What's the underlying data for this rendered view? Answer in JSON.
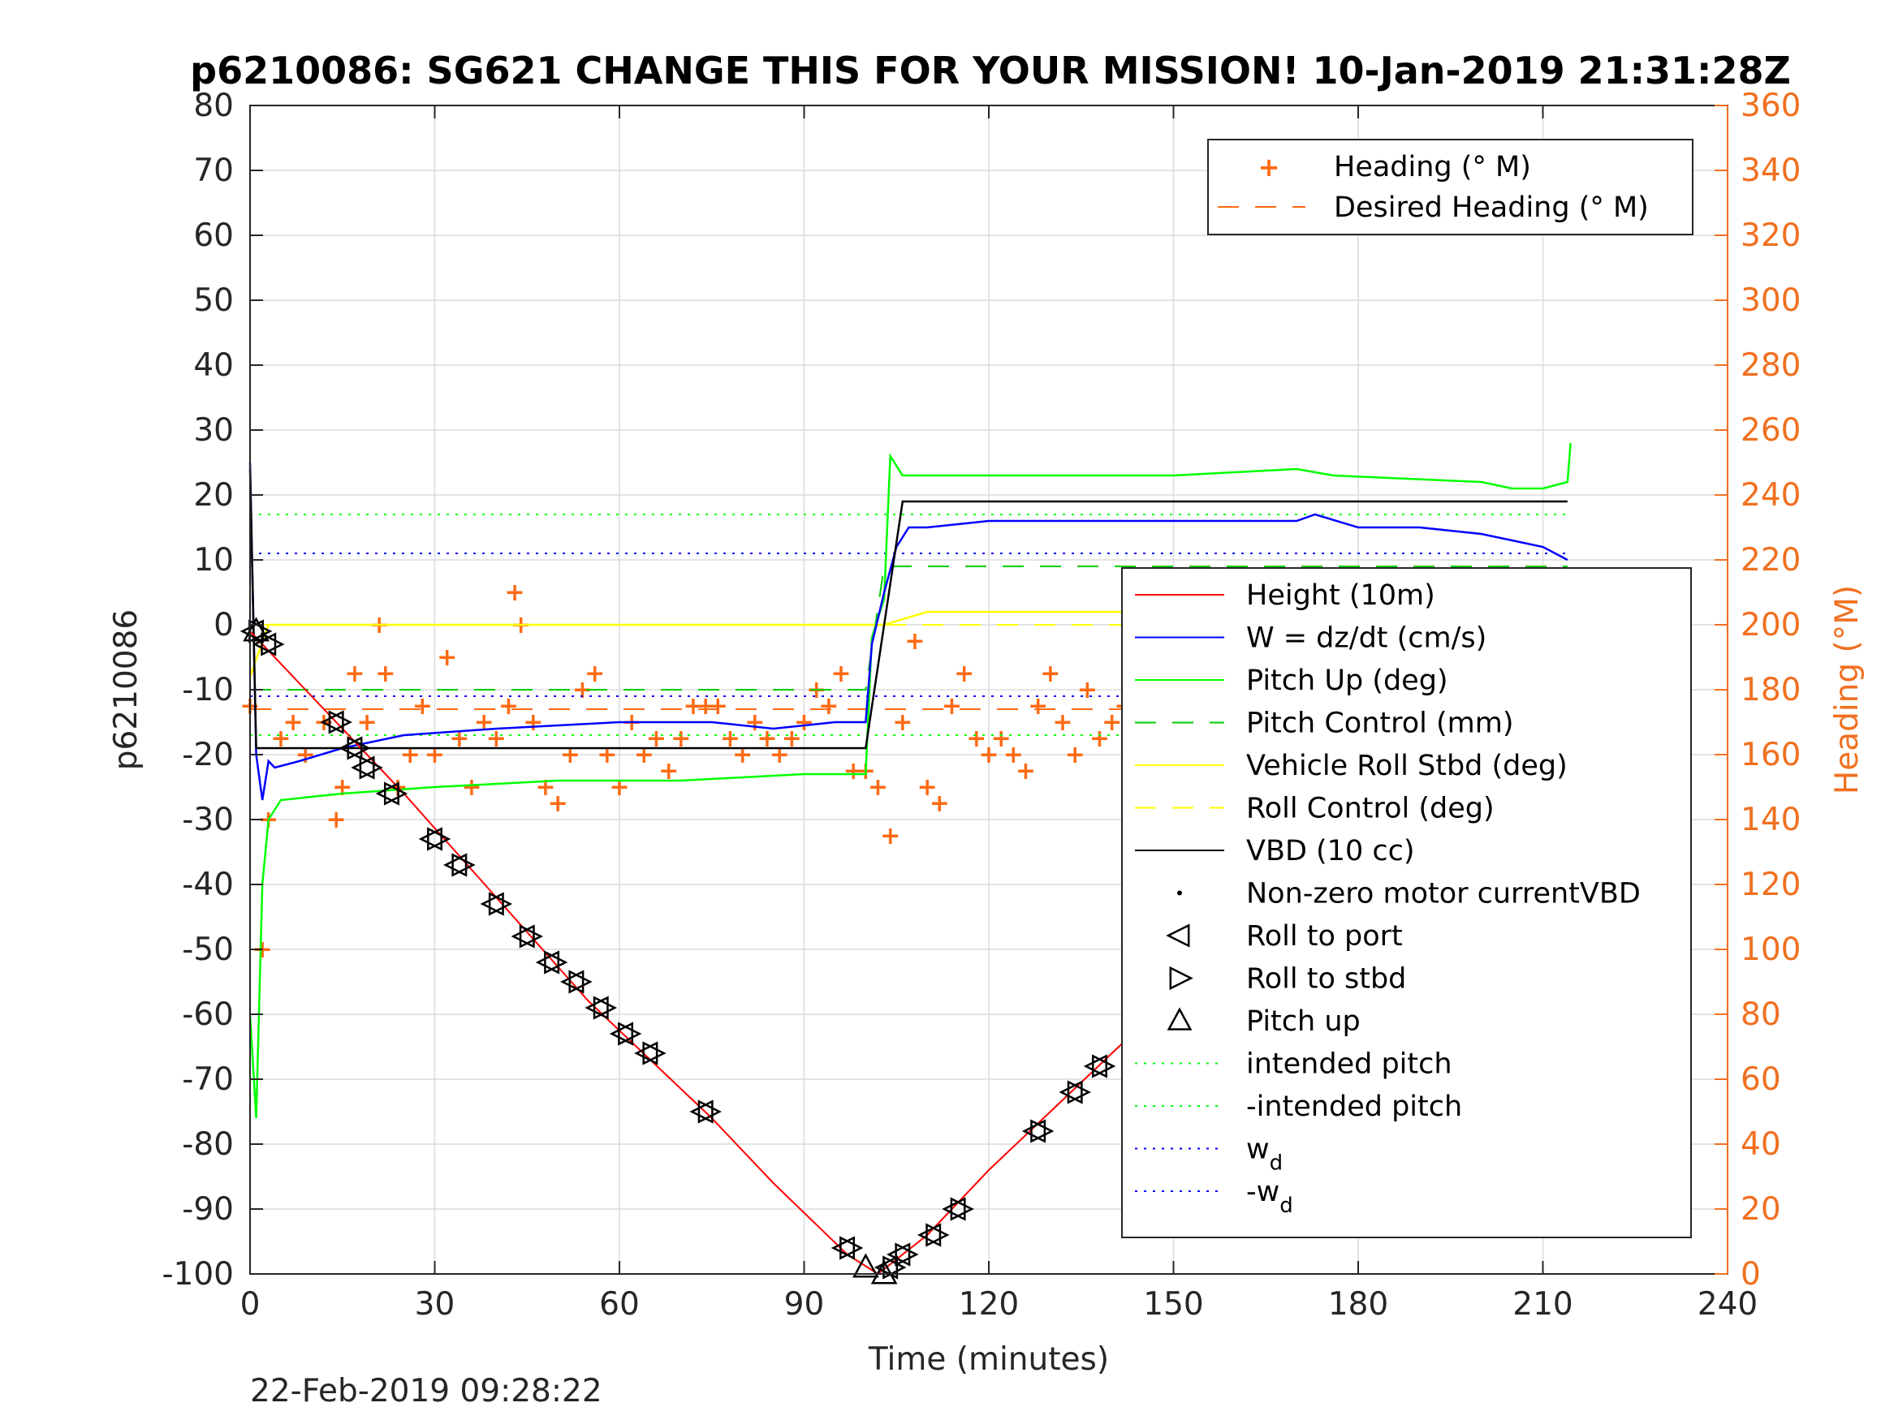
{
  "chart_data": {
    "type": "line",
    "title": "p6210086: SG621 CHANGE THIS FOR YOUR MISSION! 10-Jan-2019 21:31:28Z",
    "xlabel": "Time (minutes)",
    "ylabel": "p6210086",
    "y2label": "Heading (°M)",
    "xlim": [
      0,
      240
    ],
    "ylim": [
      -100,
      80
    ],
    "y2lim": [
      0,
      360
    ],
    "xticks": [
      0,
      30,
      60,
      90,
      120,
      150,
      180,
      210,
      240
    ],
    "yticks": [
      -100,
      -90,
      -80,
      -70,
      -60,
      -50,
      -40,
      -30,
      -20,
      -10,
      0,
      10,
      20,
      30,
      40,
      50,
      60,
      70,
      80
    ],
    "y2ticks": [
      0,
      20,
      40,
      60,
      80,
      100,
      120,
      140,
      160,
      180,
      200,
      220,
      240,
      260,
      280,
      300,
      320,
      340,
      360
    ],
    "grid": true,
    "colors": {
      "height": "#ff0000",
      "w": "#0000ff",
      "pitch": "#00ff00",
      "pitch_control": "#00cc00",
      "roll": "#ffff00",
      "vbd": "#000000",
      "heading": "#ff6a13",
      "axis_right": "#f07020"
    },
    "series": [
      {
        "name": "Height (10m)",
        "x": [
          0,
          15,
          25,
          40,
          55,
          65,
          75,
          85,
          97,
          102,
          110,
          120,
          130,
          140,
          150,
          160,
          170,
          180,
          190,
          200,
          210,
          214
        ],
        "y": [
          -1,
          -16,
          -26,
          -42,
          -58,
          -67,
          -76,
          -86,
          -97,
          -100,
          -94,
          -84,
          -75,
          -66,
          -57,
          -47,
          -37,
          -28,
          -19,
          -10,
          -3,
          -1
        ]
      },
      {
        "name": "W = dz/dt (cm/s)",
        "x": [
          0,
          1,
          2,
          3,
          4,
          8,
          15,
          25,
          40,
          60,
          75,
          85,
          95,
          100,
          101,
          103,
          105,
          107,
          110,
          120,
          130,
          140,
          150,
          160,
          170,
          173,
          180,
          190,
          200,
          205,
          210,
          214
        ],
        "y": [
          25,
          -20,
          -27,
          -21,
          -22,
          -21,
          -19,
          -17,
          -16,
          -15,
          -15,
          -16,
          -15,
          -15,
          -3,
          5,
          12,
          15,
          15,
          16,
          16,
          16,
          16,
          16,
          16,
          17,
          15,
          15,
          14,
          13,
          12,
          10
        ]
      },
      {
        "name": "Pitch Up (deg)",
        "x": [
          0,
          1,
          2,
          3,
          5,
          15,
          30,
          50,
          70,
          90,
          100,
          101,
          103,
          104,
          106,
          110,
          130,
          150,
          170,
          176,
          200,
          205,
          210,
          214,
          214.5
        ],
        "y": [
          -60,
          -76,
          -40,
          -30,
          -27,
          -26,
          -25,
          -24,
          -24,
          -23,
          -23,
          -2,
          4,
          26,
          23,
          23,
          23,
          23,
          24,
          23,
          22,
          21,
          21,
          22,
          28
        ]
      },
      {
        "name": "Pitch Control (mm)",
        "x": [
          0,
          100,
          103,
          214
        ],
        "y": [
          -10,
          -10,
          9,
          9
        ]
      },
      {
        "name": "Vehicle Roll Stbd (deg)",
        "x": [
          0,
          3,
          10,
          50,
          100,
          103,
          110,
          130,
          150,
          170,
          190,
          214
        ],
        "y": [
          -8,
          0,
          0,
          0,
          0,
          0,
          2,
          2,
          2,
          2,
          2,
          2
        ]
      },
      {
        "name": "Roll Control (deg)",
        "x": [
          0,
          214
        ],
        "y": [
          0,
          0
        ]
      },
      {
        "name": "VBD (10 cc)",
        "x": [
          0,
          1,
          2,
          100,
          106,
          110,
          214
        ],
        "y": [
          24,
          -19,
          -19,
          -19,
          19,
          19,
          19
        ]
      },
      {
        "name": "intended pitch",
        "x": [
          0,
          214
        ],
        "y": [
          17,
          17
        ]
      },
      {
        "name": "-intended pitch",
        "x": [
          0,
          214
        ],
        "y": [
          -17,
          -17
        ]
      },
      {
        "name": "w_d",
        "x": [
          0,
          214
        ],
        "y": [
          11,
          11
        ]
      },
      {
        "name": "-w_d",
        "x": [
          0,
          214
        ],
        "y": [
          -11,
          -11
        ]
      }
    ],
    "roll_markers": [
      {
        "x": 1,
        "y": -1
      },
      {
        "x": 3,
        "y": -3
      },
      {
        "x": 14,
        "y": -15
      },
      {
        "x": 17,
        "y": -19
      },
      {
        "x": 19,
        "y": -22
      },
      {
        "x": 23,
        "y": -26
      },
      {
        "x": 30,
        "y": -33
      },
      {
        "x": 34,
        "y": -37
      },
      {
        "x": 40,
        "y": -43
      },
      {
        "x": 45,
        "y": -48
      },
      {
        "x": 49,
        "y": -52
      },
      {
        "x": 53,
        "y": -55
      },
      {
        "x": 57,
        "y": -59
      },
      {
        "x": 61,
        "y": -63
      },
      {
        "x": 65,
        "y": -66
      },
      {
        "x": 74,
        "y": -75
      },
      {
        "x": 97,
        "y": -96
      },
      {
        "x": 104,
        "y": -99
      },
      {
        "x": 106,
        "y": -97
      },
      {
        "x": 111,
        "y": -94
      },
      {
        "x": 115,
        "y": -90
      },
      {
        "x": 128,
        "y": -78
      },
      {
        "x": 134,
        "y": -72
      },
      {
        "x": 138,
        "y": -68
      },
      {
        "x": 149,
        "y": -58
      },
      {
        "x": 162,
        "y": -46
      },
      {
        "x": 166,
        "y": -42
      },
      {
        "x": 170,
        "y": -38
      },
      {
        "x": 174,
        "y": -34
      },
      {
        "x": 178,
        "y": -31
      },
      {
        "x": 182,
        "y": -27
      },
      {
        "x": 195,
        "y": -16
      },
      {
        "x": 198,
        "y": -13
      },
      {
        "x": 201,
        "y": -10
      },
      {
        "x": 204,
        "y": -8
      },
      {
        "x": 207,
        "y": -6
      },
      {
        "x": 210,
        "y": -4
      },
      {
        "x": 213,
        "y": -2
      }
    ],
    "pitch_markers": [
      {
        "x": 1,
        "y": -1
      },
      {
        "x": 100,
        "y": -99
      },
      {
        "x": 103,
        "y": -100
      }
    ],
    "heading": {
      "name": "Heading (° M)",
      "x": [
        0,
        2,
        3,
        5,
        7,
        9,
        12,
        14,
        15,
        17,
        19,
        21,
        22,
        24,
        26,
        28,
        30,
        32,
        34,
        36,
        38,
        40,
        42,
        43,
        44,
        46,
        48,
        50,
        52,
        54,
        56,
        58,
        60,
        62,
        64,
        66,
        68,
        70,
        72,
        74,
        76,
        78,
        80,
        82,
        84,
        86,
        88,
        90,
        92,
        94,
        96,
        98,
        100,
        102,
        104,
        106,
        108,
        110,
        112,
        114,
        116,
        118,
        120,
        122,
        124,
        126,
        128,
        130,
        132,
        134,
        136,
        138,
        140,
        142,
        144,
        146,
        148,
        150,
        152,
        154,
        156,
        158,
        160,
        162,
        164,
        166,
        168,
        170,
        172,
        174,
        176,
        178,
        180,
        182,
        184,
        186,
        188,
        190,
        192,
        194,
        196,
        198,
        200,
        202,
        204,
        206,
        208,
        210,
        212,
        214
      ],
      "y": [
        175,
        100,
        140,
        165,
        170,
        160,
        170,
        140,
        150,
        185,
        170,
        200,
        185,
        150,
        160,
        175,
        160,
        190,
        165,
        150,
        170,
        165,
        175,
        210,
        200,
        170,
        150,
        145,
        160,
        180,
        185,
        160,
        150,
        170,
        160,
        165,
        155,
        165,
        175,
        175,
        175,
        165,
        160,
        170,
        165,
        160,
        165,
        170,
        180,
        175,
        185,
        155,
        155,
        150,
        135,
        170,
        195,
        150,
        145,
        175,
        185,
        165,
        160,
        165,
        160,
        155,
        175,
        185,
        170,
        160,
        180,
        165,
        170,
        175,
        175,
        165,
        160,
        165,
        170,
        185,
        180,
        165,
        150,
        160,
        165,
        175,
        140,
        155,
        160,
        200,
        190,
        175,
        170,
        165,
        160,
        170,
        175,
        165,
        170,
        175,
        165,
        170,
        160,
        160,
        150,
        165,
        175,
        185,
        190,
        175
      ]
    },
    "desired_heading": {
      "name": "Desired Heading (° M)",
      "x": [
        0,
        214
      ],
      "y": [
        174,
        174
      ]
    },
    "legend_heading": [
      "Heading (° M)",
      "Desired Heading (° M)"
    ],
    "legend_heading_placement": "top-right",
    "legend_main": [
      "Height (10m)",
      "W = dz/dt (cm/s)",
      "Pitch Up (deg)",
      "Pitch Control (mm)",
      "Vehicle Roll Stbd (deg)",
      "Roll Control (deg)",
      "VBD (10 cc)",
      "Non-zero motor currentVBD",
      "Roll to port",
      "Roll to stbd",
      "Pitch up",
      "intended pitch",
      "-intended pitch",
      "w",
      "-w"
    ],
    "legend_subscript": "d",
    "legend_main_placement": "right"
  },
  "footer": {
    "timestamp": "22-Feb-2019 09:28:22"
  }
}
